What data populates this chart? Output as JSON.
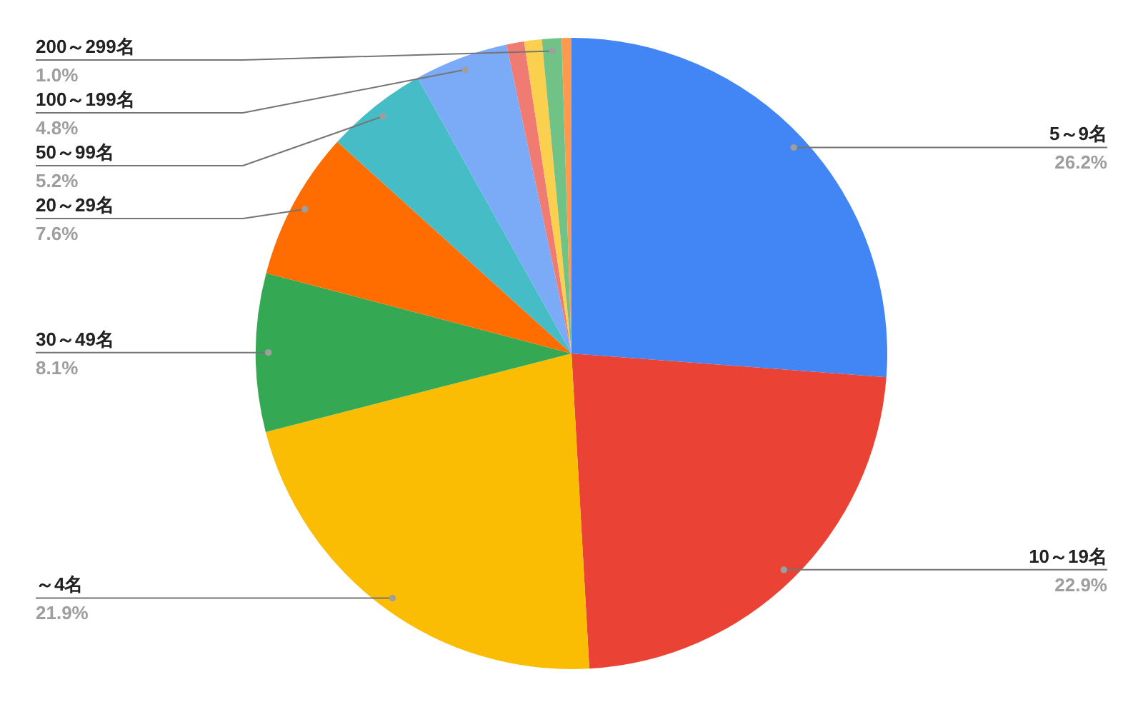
{
  "chart_data": {
    "type": "pie",
    "categories": [
      "5～9名",
      "10～19名",
      "～4名",
      "30～49名",
      "20～29名",
      "50～99名",
      "100～199名",
      null,
      null,
      "200～299名",
      null
    ],
    "values": [
      26.2,
      22.9,
      21.9,
      8.1,
      7.6,
      5.2,
      4.8,
      0.9,
      0.9,
      1.0,
      0.5
    ],
    "value_labels": [
      "26.2%",
      "22.9%",
      "21.9%",
      "8.1%",
      "7.6%",
      "5.2%",
      "4.8%",
      null,
      null,
      "1.0%",
      null
    ],
    "colors": [
      "#4285f4",
      "#ea4335",
      "#fbbc04",
      "#34a853",
      "#ff6d01",
      "#46bdc6",
      "#7baaf7",
      "#f07b72",
      "#fcd04f",
      "#71c287",
      "#ff994d"
    ]
  }
}
